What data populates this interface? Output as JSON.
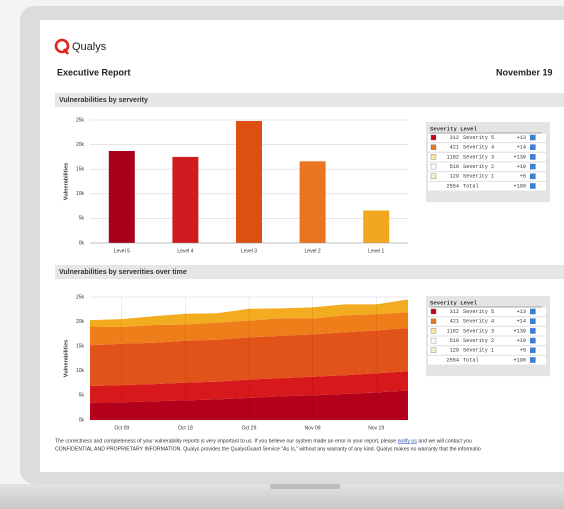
{
  "header": {
    "logo_text": "Qualys",
    "title": "Executive Report",
    "date": "November 19"
  },
  "chart_data": [
    {
      "type": "bar",
      "title": "Vulnerabilities by serverity",
      "y_label": "Vulnerabilities",
      "categories": [
        "Level 5",
        "Level 4",
        "Level 3",
        "Level 2",
        "Level 1"
      ],
      "values": [
        18700,
        17500,
        24800,
        16600,
        6600
      ],
      "colors": [
        "#a8001c",
        "#cf1b1f",
        "#de4f12",
        "#ea7520",
        "#f2a81e"
      ],
      "ylim": [
        0,
        25000
      ],
      "yticks": [
        {
          "value": 0,
          "label": "0k"
        },
        {
          "value": 5000,
          "label": "5k"
        },
        {
          "value": 10000,
          "label": "10k"
        },
        {
          "value": 15000,
          "label": "15k"
        },
        {
          "value": 20000,
          "label": "20k"
        },
        {
          "value": 25000,
          "label": "25k"
        }
      ],
      "grid": true,
      "legend_table": {
        "title": "Severity Level",
        "rows": [
          {
            "color": "#c8001e",
            "count": "312",
            "name": "Severity 5",
            "change": "+13"
          },
          {
            "color": "#e87722",
            "count": "421",
            "name": "Severity 4",
            "change": "+14"
          },
          {
            "color": "#ffe79a",
            "count": "1182",
            "name": "Severity 3",
            "change": "+139"
          },
          {
            "color": "#ffffff",
            "count": "510",
            "name": "Severity 2",
            "change": "+19"
          },
          {
            "color": "#e8f5d0",
            "count": "129",
            "name": "Severity 1",
            "change": "+5"
          },
          {
            "count": "2554",
            "name": "Total",
            "change": "+190"
          }
        ]
      }
    },
    {
      "type": "stacked_area",
      "title": "Vulnerabilities by serverities over time",
      "y_label": "Vulnerabilities",
      "categories": [
        null,
        "Oct 09",
        null,
        "Oct 18",
        null,
        "Oct 29",
        null,
        "Nov 09",
        null,
        "Nov 19",
        null
      ],
      "series": [
        {
          "name": "Severity 5",
          "color": "#b3001b",
          "values": [
            3500,
            3600,
            3800,
            4000,
            4200,
            4500,
            4800,
            5000,
            5300,
            5600,
            6000
          ]
        },
        {
          "name": "Severity 4",
          "color": "#d7191c",
          "values": [
            3400,
            3500,
            3500,
            3600,
            3600,
            3700,
            3700,
            3800,
            3800,
            3900,
            3900
          ]
        },
        {
          "name": "Severity 3",
          "color": "#e2531a",
          "values": [
            8300,
            8400,
            8400,
            8500,
            8500,
            8600,
            8600,
            8600,
            8700,
            8700,
            8800
          ]
        },
        {
          "name": "Severity 2",
          "color": "#ef7d1a",
          "values": [
            3800,
            3400,
            3600,
            3300,
            3500,
            3400,
            3600,
            3200,
            3500,
            3300,
            3200
          ]
        },
        {
          "name": "Severity 1",
          "color": "#f3ab1f",
          "values": [
            1300,
            1600,
            1800,
            2200,
            1900,
            2400,
            2000,
            2300,
            2200,
            2000,
            2600
          ]
        }
      ],
      "ylim": [
        0,
        25000
      ],
      "yticks": [
        {
          "value": 0,
          "label": "0k"
        },
        {
          "value": 5000,
          "label": "5k"
        },
        {
          "value": 10000,
          "label": "10k"
        },
        {
          "value": 15000,
          "label": "15k"
        },
        {
          "value": 20000,
          "label": "20k"
        },
        {
          "value": 25000,
          "label": "25k"
        }
      ],
      "grid": true,
      "legend_table": {
        "title": "Severity Level",
        "rows": [
          {
            "color": "#c8001e",
            "count": "312",
            "change": "+13"
          },
          {
            "color": "#e87722",
            "count": "421",
            "change": "+14"
          },
          {
            "color": "#ffe79a",
            "count": "1182",
            "change": "+139"
          },
          {
            "color": "#ffffff",
            "count": "510",
            "change": "+19"
          },
          {
            "color": "#e8f5d0",
            "count": "129",
            "change": "+5"
          },
          {
            "count": "2554",
            "name": "Total",
            "change": "+190"
          }
        ]
      }
    }
  ],
  "footer": {
    "line1_before": "The correctness and completeness of your vulnerability reports is very important to us. If you believe our system made an error in your report, please",
    "line1_link": "notify us",
    "line1_after": "and we will contact you",
    "line2": "CONFIDENTIAL AND PROPRIETARY INFORMATION. Qualys provides the QualysGuard Service \"As Is,\" without any warranty of any kind. Qualys makes no warranty that the informatio"
  }
}
